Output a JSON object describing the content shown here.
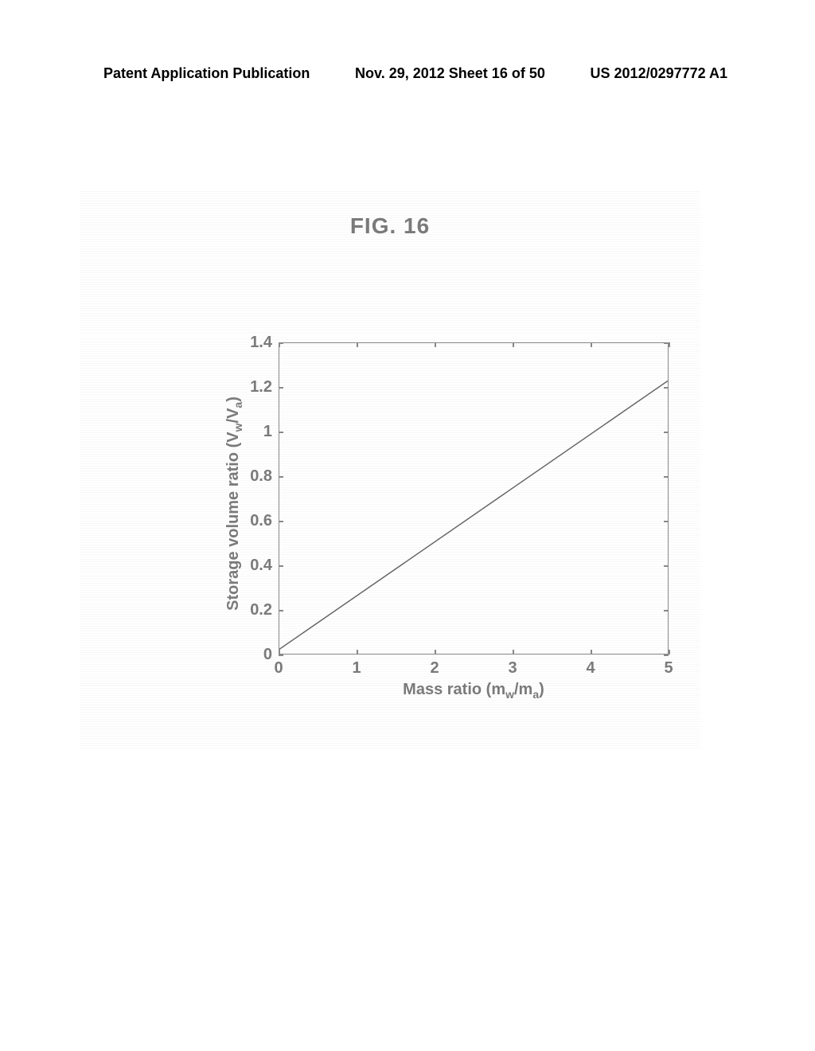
{
  "header": {
    "left": "Patent Application Publication",
    "center": "Nov. 29, 2012  Sheet 16 of 50",
    "right": "US 2012/0297772 A1"
  },
  "figure": {
    "title": "FIG. 16",
    "type": "line",
    "background_color": "#ffffff",
    "axis_color": "#888888",
    "text_color": "#7a7a7a",
    "line_color": "#666666",
    "line_width": 1.5,
    "x_axis": {
      "label_prefix": "Mass ratio (m",
      "sub1": "w",
      "mid": "/m",
      "sub2": "a",
      "suffix": ")",
      "min": 0,
      "max": 5,
      "ticks": [
        0,
        1,
        2,
        3,
        4,
        5
      ]
    },
    "y_axis": {
      "label_prefix": "Storage volume ratio (V",
      "sub1": "w",
      "mid": "/V",
      "sub2": "a",
      "suffix": ")",
      "min": 0,
      "max": 1.4,
      "ticks": [
        0,
        0.2,
        0.4,
        0.6,
        0.8,
        1,
        1.2,
        1.4
      ]
    },
    "data": {
      "x": [
        0,
        5
      ],
      "y": [
        0.02,
        1.23
      ]
    }
  }
}
